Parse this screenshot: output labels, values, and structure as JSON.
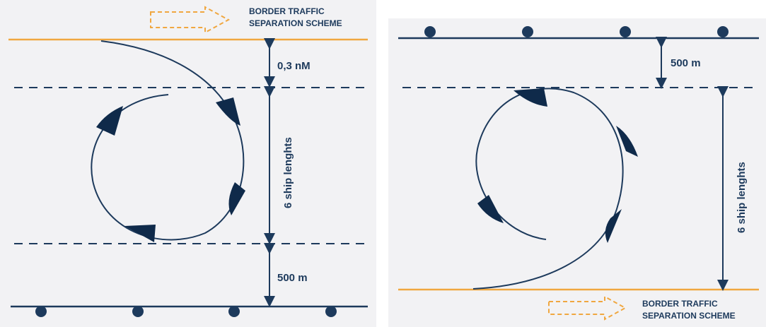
{
  "left_panel": {
    "tss_label_line1": "BORDER TRAFFIC",
    "tss_label_line2": "SEPARATION SCHEME",
    "dim_top": "0,3 nM",
    "dim_middle": "6 ship lenghts",
    "dim_bottom": "500 m"
  },
  "right_panel": {
    "tss_label_line1": "BORDER TRAFFIC",
    "tss_label_line2": "SEPARATION SCHEME",
    "dim_top": "500 m",
    "dim_middle": "6 ship lenghts"
  },
  "colors": {
    "navy": "#1d3a5c",
    "orange": "#f0a740",
    "panel_bg": "#f2f2f4"
  },
  "icons": [
    "arrow-right-dashed-icon",
    "buoy-icon",
    "ship-icon",
    "double-arrow-icon"
  ]
}
